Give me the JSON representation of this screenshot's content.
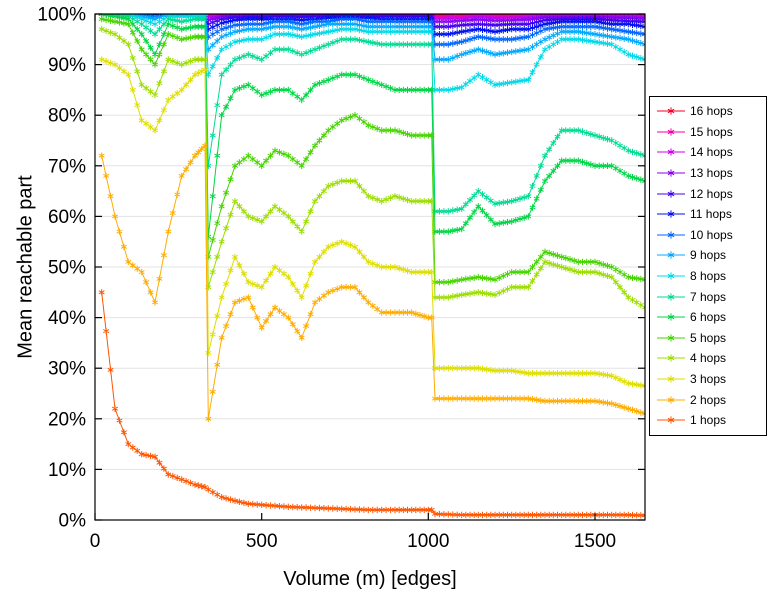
{
  "chart_data": {
    "type": "line",
    "title": "",
    "xlabel": "Volume (m) [edges]",
    "ylabel": "Mean reachable part",
    "xlim": [
      0,
      1650
    ],
    "ylim": [
      0,
      100
    ],
    "x_tick_values": [
      0,
      500,
      1000,
      1500
    ],
    "x_tick_labels": [
      "0",
      "500",
      "1000",
      "1500"
    ],
    "y_tick_values": [
      0,
      10,
      20,
      30,
      40,
      50,
      60,
      70,
      80,
      90,
      100
    ],
    "y_tick_labels": [
      "0%",
      "10%",
      "20%",
      "30%",
      "40%",
      "50%",
      "60%",
      "70%",
      "80%",
      "90%",
      "100%"
    ],
    "grid": "horizontal",
    "marker": "asterisk",
    "legend_position": "right-outside",
    "x": [
      20,
      60,
      100,
      140,
      180,
      220,
      260,
      300,
      330,
      340,
      380,
      420,
      460,
      500,
      540,
      580,
      620,
      660,
      700,
      740,
      780,
      820,
      860,
      900,
      950,
      1000,
      1010,
      1020,
      1060,
      1100,
      1150,
      1200,
      1250,
      1300,
      1350,
      1400,
      1450,
      1500,
      1550,
      1600,
      1650
    ],
    "series": [
      {
        "name": "16 hops",
        "color": "#f20022",
        "values": [
          100,
          100,
          100,
          100,
          100,
          100,
          100,
          100,
          100,
          99.8,
          100,
          100,
          100,
          100,
          100,
          100,
          100,
          100,
          100,
          100,
          100,
          100,
          100,
          100,
          100,
          100,
          100,
          99.7,
          99.7,
          99.8,
          99.8,
          99.8,
          99.8,
          99.8,
          99.9,
          99.9,
          99.9,
          99.9,
          99.9,
          99.9,
          99.9
        ]
      },
      {
        "name": "15 hops",
        "color": "#f500a8",
        "values": [
          100,
          100,
          100,
          100,
          100,
          100,
          100,
          100,
          100,
          99.6,
          99.9,
          99.9,
          99.9,
          99.9,
          100,
          100,
          99.9,
          100,
          100,
          100,
          100,
          99.9,
          99.9,
          99.9,
          99.9,
          99.9,
          99.9,
          99.5,
          99.5,
          99.6,
          99.7,
          99.6,
          99.6,
          99.6,
          99.8,
          99.8,
          99.8,
          99.8,
          99.8,
          99.8,
          99.7
        ]
      },
      {
        "name": "14 hops",
        "color": "#cc00ee",
        "values": [
          100,
          100,
          100,
          100,
          100,
          100,
          100,
          100,
          100,
          99.3,
          99.7,
          99.8,
          99.8,
          99.8,
          99.9,
          99.9,
          99.8,
          99.9,
          99.9,
          99.9,
          99.9,
          99.8,
          99.8,
          99.8,
          99.8,
          99.8,
          99.8,
          99.1,
          99.1,
          99.2,
          99.4,
          99.2,
          99.3,
          99.3,
          99.6,
          99.7,
          99.7,
          99.7,
          99.6,
          99.6,
          99.5
        ]
      },
      {
        "name": "13 hops",
        "color": "#8800ee",
        "values": [
          100,
          100,
          100,
          100,
          100,
          100,
          100,
          100,
          100,
          98.8,
          99.5,
          99.6,
          99.7,
          99.7,
          99.7,
          99.7,
          99.7,
          99.7,
          99.8,
          99.8,
          99.8,
          99.7,
          99.7,
          99.7,
          99.7,
          99.7,
          99.7,
          98.5,
          98.5,
          98.7,
          98.9,
          98.7,
          98.8,
          98.9,
          99.3,
          99.4,
          99.4,
          99.4,
          99.3,
          99.2,
          99.1
        ]
      },
      {
        "name": "12 hops",
        "color": "#4400ee",
        "values": [
          100,
          100,
          100,
          100,
          100,
          100,
          100,
          100,
          100,
          98,
          99,
          99.3,
          99.4,
          99.4,
          99.5,
          99.5,
          99.4,
          99.5,
          99.6,
          99.6,
          99.6,
          99.5,
          99.5,
          99.5,
          99.5,
          99.5,
          99.5,
          97.5,
          97.5,
          97.8,
          98,
          97.8,
          98,
          98,
          98.8,
          99,
          99,
          99,
          98.8,
          98.6,
          98.5
        ]
      },
      {
        "name": "11 hops",
        "color": "#0011ee",
        "values": [
          100,
          100,
          100,
          100,
          100,
          100,
          100,
          100,
          100,
          97,
          98.2,
          98.8,
          99,
          99,
          99,
          99,
          98.8,
          99,
          99.2,
          99.3,
          99.3,
          99.2,
          99,
          99,
          99,
          99,
          99,
          96,
          96,
          96.5,
          97,
          96.5,
          97,
          97,
          98,
          98.5,
          98.5,
          98.5,
          98,
          98,
          97.5
        ]
      },
      {
        "name": "10 hops",
        "color": "#0066ff",
        "values": [
          100,
          100,
          100,
          100,
          99.5,
          100,
          100,
          100,
          100,
          95.5,
          97,
          97.8,
          98,
          98,
          98.5,
          98.5,
          98,
          98.5,
          98.5,
          99,
          99,
          98.5,
          98.5,
          98.5,
          98.5,
          98.5,
          98.5,
          94,
          94,
          94.5,
          95.5,
          95,
          95,
          95.5,
          97,
          97.5,
          97.5,
          97.5,
          97,
          96.5,
          96
        ]
      },
      {
        "name": "9 hops",
        "color": "#00a8ff",
        "values": [
          100,
          100,
          100,
          99.5,
          99,
          100,
          100,
          100,
          100,
          93,
          95.5,
          96.5,
          97,
          97,
          97.5,
          97.5,
          97,
          97.5,
          98,
          98,
          98,
          97.5,
          97.5,
          97.5,
          97.5,
          97.5,
          97.5,
          91,
          91,
          92,
          93,
          92,
          92.5,
          93,
          95,
          96.5,
          96.5,
          96,
          95.5,
          95,
          94
        ]
      },
      {
        "name": "8 hops",
        "color": "#00d9e8",
        "values": [
          100,
          100,
          100,
          99,
          98,
          99.5,
          99.5,
          99.5,
          99.5,
          88,
          93,
          94.5,
          95,
          95,
          96,
          96,
          95.5,
          96,
          96.5,
          97,
          97,
          96.5,
          96.5,
          96.5,
          96.5,
          96.5,
          96.5,
          85,
          85,
          85.5,
          88,
          86,
          86.5,
          87,
          93,
          95,
          95,
          94.5,
          94,
          92,
          91
        ]
      },
      {
        "name": "7 hops",
        "color": "#00db94",
        "values": [
          100,
          100,
          99.5,
          98,
          96,
          99,
          98.5,
          99,
          99,
          70,
          88,
          91,
          92,
          91,
          93,
          93,
          92,
          93,
          94,
          95,
          95,
          94.5,
          94,
          94,
          94,
          94,
          94,
          61,
          61,
          61.5,
          65,
          62.5,
          63,
          64,
          72,
          77,
          77,
          76,
          75,
          73,
          72
        ]
      },
      {
        "name": "6 hops",
        "color": "#00d545",
        "values": [
          100,
          99.5,
          99,
          96,
          92,
          98,
          97,
          97.5,
          97.5,
          56,
          80,
          85,
          86,
          84,
          85,
          85,
          83,
          86,
          87,
          88,
          88,
          87,
          86,
          85,
          85,
          85,
          85,
          57,
          57,
          57.5,
          62,
          58.5,
          59,
          60,
          67,
          71,
          71,
          70,
          70,
          68,
          67
        ]
      },
      {
        "name": "5 hops",
        "color": "#46d400",
        "values": [
          99,
          98.5,
          98,
          93,
          90,
          96,
          95,
          95.5,
          95.5,
          52,
          62,
          70,
          72,
          70,
          73,
          72,
          70,
          74,
          77,
          79,
          80,
          78,
          77,
          77,
          76,
          76,
          76,
          47,
          47,
          47.5,
          48,
          47.5,
          49,
          49,
          53,
          52,
          51,
          51,
          50,
          48,
          47.5
        ]
      },
      {
        "name": "4 hops",
        "color": "#9cde00",
        "values": [
          97,
          96,
          94,
          86,
          84,
          91,
          90,
          91,
          91,
          46,
          55,
          63,
          60,
          59,
          62,
          60,
          57,
          63,
          66,
          67,
          67,
          64,
          63,
          64,
          63,
          63,
          63,
          44,
          44,
          44.5,
          45,
          44.5,
          46,
          46,
          51,
          50,
          49,
          49,
          48,
          44,
          42
        ]
      },
      {
        "name": "3 hops",
        "color": "#dede00",
        "values": [
          91,
          90,
          88,
          79,
          77,
          83,
          85,
          88,
          89,
          33,
          44,
          52,
          47,
          46,
          50,
          48,
          44,
          51,
          54,
          55,
          54,
          51,
          50,
          50,
          49,
          49,
          49,
          30,
          30,
          30,
          30,
          29.5,
          29.5,
          29,
          29,
          29,
          29,
          29,
          28.5,
          27,
          26.5
        ]
      },
      {
        "name": "2 hops",
        "color": "#ffac00",
        "values": [
          72,
          60,
          51,
          49,
          43,
          57,
          68,
          72,
          74,
          20,
          36,
          43,
          44,
          38,
          42,
          40,
          36,
          43,
          45,
          46,
          46,
          43,
          41,
          41,
          41,
          40,
          40,
          24,
          24,
          24,
          24,
          24,
          24,
          24,
          23.5,
          23.5,
          23.5,
          23.5,
          23,
          22,
          21
        ]
      },
      {
        "name": "1 hops",
        "color": "#ff5500",
        "values": [
          45,
          22,
          15,
          13,
          12.5,
          9,
          8,
          7,
          6.5,
          6,
          4.5,
          3.8,
          3.2,
          3,
          2.8,
          2.6,
          2.5,
          2.4,
          2.3,
          2.2,
          2.1,
          2,
          2,
          2,
          2,
          2,
          2,
          1.2,
          1.1,
          1,
          1,
          1,
          1,
          1,
          1,
          1,
          1,
          1,
          1,
          1,
          0.9
        ]
      }
    ]
  }
}
